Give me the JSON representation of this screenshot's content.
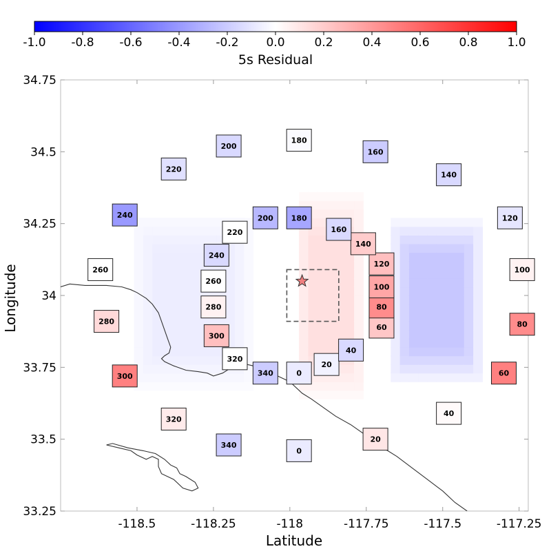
{
  "chart_data": {
    "type": "heatmap",
    "title": "",
    "xlabel": "Latitude",
    "ylabel": "Longitude",
    "xlim": [
      -118.75,
      -117.22
    ],
    "ylim": [
      33.25,
      34.75
    ],
    "xticks": [
      -118.5,
      -118.25,
      -118.0,
      -117.75,
      -117.5,
      -117.25
    ],
    "xtick_labels": [
      "-118.5",
      "-118.25",
      "-118",
      "-117.75",
      "-117.5",
      "-117.25"
    ],
    "yticks": [
      33.25,
      33.5,
      33.75,
      34.0,
      34.25,
      34.5,
      34.75
    ],
    "ytick_labels": [
      "33.25",
      "33.5",
      "33.75",
      "34",
      "34.25",
      "34.5",
      "34.75"
    ],
    "colorbar": {
      "label": "5s Residual",
      "min": -1.0,
      "max": 1.0,
      "ticks": [
        -1.0,
        -0.8,
        -0.6,
        -0.4,
        -0.2,
        0.0,
        0.2,
        0.4,
        0.6,
        0.8,
        1.0
      ],
      "tick_labels": [
        "-1.0",
        "-0.8",
        "-0.6",
        "-0.4",
        "-0.2",
        "0.0",
        "0.2",
        "0.4",
        "0.6",
        "0.8",
        "1.0"
      ],
      "colors": {
        "negative": "#0000ff",
        "zero": "#ffffff",
        "positive": "#ff0000"
      }
    },
    "epicenter": {
      "lon": -117.96,
      "lat": 34.05
    },
    "source_box": {
      "lon_min": -118.01,
      "lon_max": -117.84,
      "lat_min": 33.91,
      "lat_max": 34.09
    },
    "background_blobs": [
      {
        "lon": -117.87,
        "lat": 34.0,
        "rx": 0.12,
        "ry": 0.38,
        "value": 0.12
      },
      {
        "lon": -117.52,
        "lat": 33.98,
        "rx": 0.16,
        "ry": 0.3,
        "value": -0.22
      },
      {
        "lon": -118.32,
        "lat": 33.98,
        "rx": 0.22,
        "ry": 0.33,
        "value": -0.07
      }
    ],
    "inner_ring": [
      {
        "label": "0",
        "lon": -117.97,
        "lat": 33.73,
        "value": -0.08
      },
      {
        "label": "20",
        "lon": -117.88,
        "lat": 33.76,
        "value": -0.05
      },
      {
        "label": "40",
        "lon": -117.8,
        "lat": 33.81,
        "value": -0.15
      },
      {
        "label": "60",
        "lon": -117.7,
        "lat": 33.89,
        "value": 0.22
      },
      {
        "label": "80",
        "lon": -117.7,
        "lat": 33.96,
        "value": 0.45
      },
      {
        "label": "100",
        "lon": -117.7,
        "lat": 34.03,
        "value": 0.35
      },
      {
        "label": "120",
        "lon": -117.7,
        "lat": 34.11,
        "value": 0.25
      },
      {
        "label": "140",
        "lon": -117.76,
        "lat": 34.18,
        "value": 0.2
      },
      {
        "label": "160",
        "lon": -117.84,
        "lat": 34.23,
        "value": -0.15
      },
      {
        "label": "180",
        "lon": -117.97,
        "lat": 34.27,
        "value": -0.35
      },
      {
        "label": "200",
        "lon": -118.08,
        "lat": 34.27,
        "value": -0.28
      },
      {
        "label": "220",
        "lon": -118.18,
        "lat": 34.22,
        "value": 0.0
      },
      {
        "label": "240",
        "lon": -118.24,
        "lat": 34.14,
        "value": -0.15
      },
      {
        "label": "260",
        "lon": -118.25,
        "lat": 34.05,
        "value": 0.0
      },
      {
        "label": "280",
        "lon": -118.25,
        "lat": 33.96,
        "value": 0.05
      },
      {
        "label": "300",
        "lon": -118.24,
        "lat": 33.86,
        "value": 0.25
      },
      {
        "label": "320",
        "lon": -118.18,
        "lat": 33.78,
        "value": 0.0
      },
      {
        "label": "340",
        "lon": -118.08,
        "lat": 33.73,
        "value": -0.2
      }
    ],
    "outer_ring": [
      {
        "label": "0",
        "lon": -117.97,
        "lat": 33.46,
        "value": -0.08
      },
      {
        "label": "20",
        "lon": -117.72,
        "lat": 33.5,
        "value": 0.1
      },
      {
        "label": "40",
        "lon": -117.48,
        "lat": 33.59,
        "value": 0.02
      },
      {
        "label": "60",
        "lon": -117.3,
        "lat": 33.73,
        "value": 0.5
      },
      {
        "label": "80",
        "lon": -117.24,
        "lat": 33.9,
        "value": 0.45
      },
      {
        "label": "100",
        "lon": -117.24,
        "lat": 34.09,
        "value": 0.05
      },
      {
        "label": "120",
        "lon": -117.28,
        "lat": 34.27,
        "value": -0.1
      },
      {
        "label": "140",
        "lon": -117.48,
        "lat": 34.42,
        "value": -0.15
      },
      {
        "label": "160",
        "lon": -117.72,
        "lat": 34.5,
        "value": -0.2
      },
      {
        "label": "180",
        "lon": -117.97,
        "lat": 34.54,
        "value": -0.02
      },
      {
        "label": "200",
        "lon": -118.2,
        "lat": 34.52,
        "value": -0.15
      },
      {
        "label": "220",
        "lon": -118.38,
        "lat": 34.44,
        "value": -0.12
      },
      {
        "label": "240",
        "lon": -118.54,
        "lat": 34.28,
        "value": -0.4
      },
      {
        "label": "260",
        "lon": -118.62,
        "lat": 34.09,
        "value": 0.0
      },
      {
        "label": "280",
        "lon": -118.6,
        "lat": 33.91,
        "value": 0.15
      },
      {
        "label": "300",
        "lon": -118.54,
        "lat": 33.72,
        "value": 0.5
      },
      {
        "label": "320",
        "lon": -118.38,
        "lat": 33.57,
        "value": 0.08
      },
      {
        "label": "340",
        "lon": -118.2,
        "lat": 33.48,
        "value": -0.2
      }
    ],
    "coastline": [
      [
        -118.75,
        34.03
      ],
      [
        -118.72,
        34.04
      ],
      [
        -118.67,
        34.035
      ],
      [
        -118.6,
        34.035
      ],
      [
        -118.55,
        34.03
      ],
      [
        -118.52,
        34.02
      ],
      [
        -118.5,
        34.01
      ],
      [
        -118.47,
        33.99
      ],
      [
        -118.45,
        33.97
      ],
      [
        -118.43,
        33.94
      ],
      [
        -118.42,
        33.91
      ],
      [
        -118.41,
        33.88
      ],
      [
        -118.4,
        33.85
      ],
      [
        -118.39,
        33.82
      ],
      [
        -118.395,
        33.8
      ],
      [
        -118.41,
        33.79
      ],
      [
        -118.42,
        33.78
      ],
      [
        -118.41,
        33.77
      ],
      [
        -118.38,
        33.755
      ],
      [
        -118.34,
        33.74
      ],
      [
        -118.3,
        33.735
      ],
      [
        -118.27,
        33.73
      ],
      [
        -118.25,
        33.72
      ],
      [
        -118.22,
        33.73
      ],
      [
        -118.19,
        33.75
      ],
      [
        -118.16,
        33.765
      ],
      [
        -118.12,
        33.755
      ],
      [
        -118.08,
        33.74
      ],
      [
        -118.04,
        33.72
      ],
      [
        -118.0,
        33.7
      ],
      [
        -117.96,
        33.66
      ],
      [
        -117.93,
        33.64
      ],
      [
        -117.89,
        33.61
      ],
      [
        -117.85,
        33.58
      ],
      [
        -117.8,
        33.55
      ],
      [
        -117.76,
        33.52
      ],
      [
        -117.72,
        33.48
      ],
      [
        -117.68,
        33.46
      ],
      [
        -117.65,
        33.44
      ],
      [
        -117.6,
        33.4
      ],
      [
        -117.55,
        33.36
      ],
      [
        -117.5,
        33.32
      ],
      [
        -117.46,
        33.28
      ],
      [
        -117.42,
        33.25
      ]
    ],
    "island": [
      [
        -118.6,
        33.48
      ],
      [
        -118.56,
        33.47
      ],
      [
        -118.52,
        33.46
      ],
      [
        -118.5,
        33.445
      ],
      [
        -118.47,
        33.43
      ],
      [
        -118.45,
        33.44
      ],
      [
        -118.43,
        33.43
      ],
      [
        -118.43,
        33.405
      ],
      [
        -118.42,
        33.38
      ],
      [
        -118.38,
        33.36
      ],
      [
        -118.35,
        33.33
      ],
      [
        -118.32,
        33.32
      ],
      [
        -118.3,
        33.33
      ],
      [
        -118.31,
        33.35
      ],
      [
        -118.34,
        33.37
      ],
      [
        -118.36,
        33.38
      ],
      [
        -118.37,
        33.4
      ],
      [
        -118.39,
        33.41
      ],
      [
        -118.41,
        33.43
      ],
      [
        -118.44,
        33.45
      ],
      [
        -118.48,
        33.46
      ],
      [
        -118.53,
        33.47
      ],
      [
        -118.58,
        33.485
      ],
      [
        -118.6,
        33.48
      ]
    ]
  }
}
